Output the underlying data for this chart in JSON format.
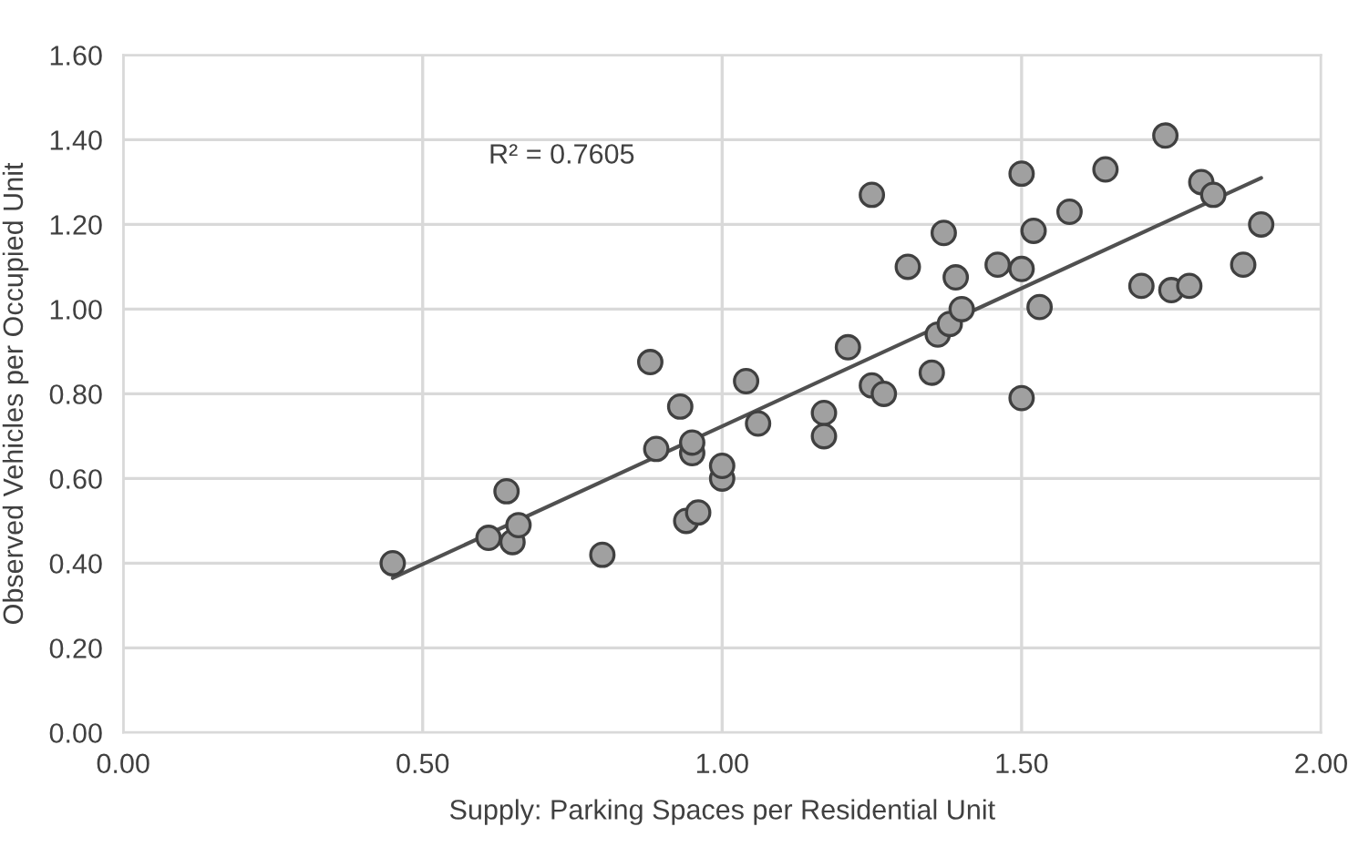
{
  "chart_data": {
    "type": "scatter",
    "xlabel": "Supply: Parking Spaces per Residential Unit",
    "ylabel": "Observed Vehicles per Occupied Unit",
    "xlim": [
      0,
      2
    ],
    "xticks": [
      {
        "value": 0,
        "label": "0.00"
      },
      {
        "value": 0.5,
        "label": "0.50"
      },
      {
        "value": 1,
        "label": "1.00"
      },
      {
        "value": 1.5,
        "label": "1.50"
      },
      {
        "value": 2,
        "label": "2.00"
      }
    ],
    "ylim": [
      0,
      1.6
    ],
    "yticks": [
      {
        "value": 0,
        "label": "0.00"
      },
      {
        "value": 0.2,
        "label": "0.20"
      },
      {
        "value": 0.4,
        "label": "0.40"
      },
      {
        "value": 0.6,
        "label": "0.60"
      },
      {
        "value": 0.8,
        "label": "0.80"
      },
      {
        "value": 1.0,
        "label": "1.00"
      },
      {
        "value": 1.2,
        "label": "1.20"
      },
      {
        "value": 1.4,
        "label": "1.40"
      },
      {
        "value": 1.6,
        "label": "1.60"
      }
    ],
    "grid": true,
    "legend": false,
    "annotations": [
      "R² = 0.7605"
    ],
    "series": [
      {
        "marker": "circle",
        "color": "#a0a0a0",
        "x": [
          0.45,
          0.61,
          0.64,
          0.65,
          0.66,
          0.8,
          0.88,
          0.89,
          0.93,
          0.94,
          0.95,
          0.95,
          0.96,
          1.0,
          1.0,
          1.04,
          1.06,
          1.17,
          1.17,
          1.21,
          1.25,
          1.25,
          1.27,
          1.31,
          1.35,
          1.36,
          1.37,
          1.38,
          1.39,
          1.4,
          1.46,
          1.5,
          1.5,
          1.5,
          1.52,
          1.53,
          1.58,
          1.64,
          1.7,
          1.74,
          1.75,
          1.78,
          1.8,
          1.82,
          1.87,
          1.9
        ],
        "values": [
          0.4,
          0.46,
          0.57,
          0.45,
          0.49,
          0.42,
          0.875,
          0.67,
          0.77,
          0.5,
          0.66,
          0.685,
          0.52,
          0.6,
          0.63,
          0.83,
          0.73,
          0.755,
          0.7,
          0.91,
          1.27,
          0.82,
          0.8,
          1.1,
          0.85,
          0.94,
          1.18,
          0.965,
          1.075,
          1.0,
          1.105,
          1.32,
          1.095,
          0.79,
          1.185,
          1.005,
          1.23,
          1.33,
          1.055,
          1.41,
          1.045,
          1.055,
          1.3,
          1.27,
          1.105,
          1.2
        ]
      },
      {
        "type": "line",
        "marker": "none",
        "color": "#505050",
        "x": [
          0.45,
          1.9
        ],
        "values": [
          0.365,
          1.31
        ]
      }
    ]
  }
}
